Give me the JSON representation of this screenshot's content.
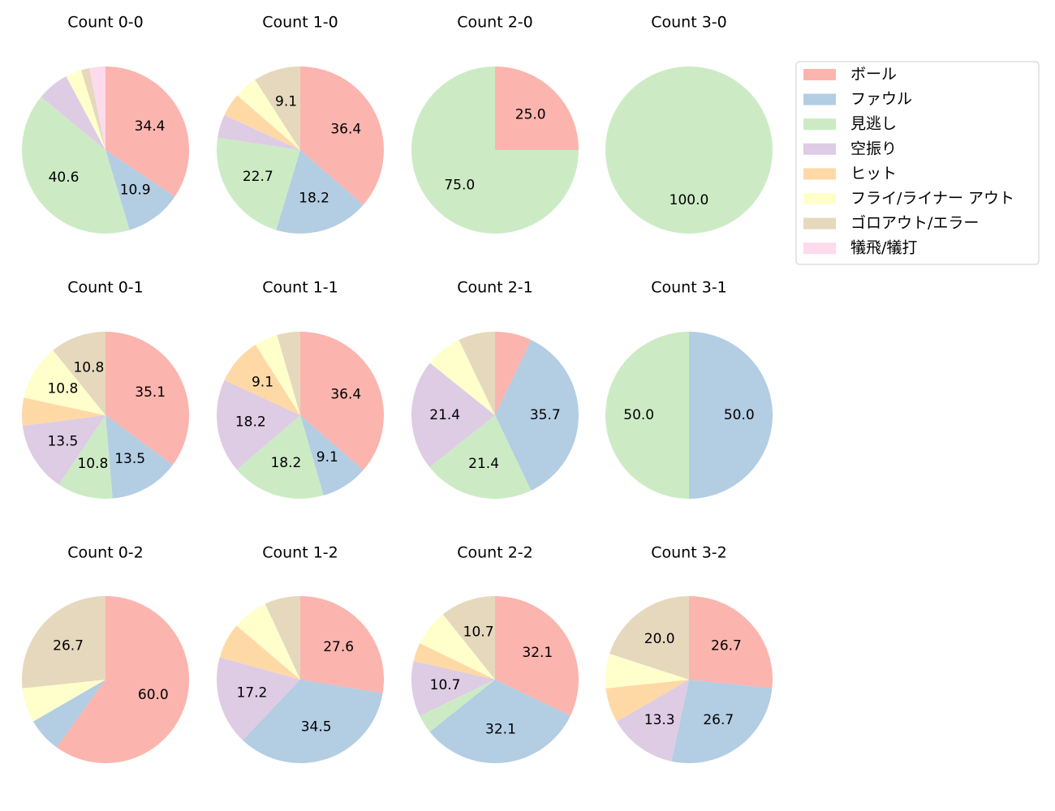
{
  "chart_data": [
    {
      "type": "pie",
      "title": "Count 0-0",
      "legend": "upper right",
      "categories": [
        "ボール",
        "ファウル",
        "見逃し",
        "空振り",
        "ヒット",
        "フライ/ライナー アウト",
        "ゴロアウト/エラー",
        "犠飛/犠打"
      ],
      "colors": [
        "#fbb4ae",
        "#b3cde3",
        "#ccebc5",
        "#decbe4",
        "#fed9a6",
        "#ffffcc",
        "#e5d8bd",
        "#fddaec"
      ],
      "values": [
        34.4,
        10.9,
        40.6,
        6.2,
        0,
        3.1,
        1.6,
        3.1
      ],
      "value_labels": [
        "34.4",
        "10.9",
        "40.6",
        null,
        null,
        null,
        null,
        null
      ]
    },
    {
      "type": "pie",
      "title": "Count 1-0",
      "values": [
        36.4,
        18.2,
        22.7,
        4.5,
        4.5,
        4.5,
        9.1,
        0
      ],
      "value_labels": [
        "36.4",
        "18.2",
        "22.7",
        null,
        null,
        null,
        "9.1",
        null
      ]
    },
    {
      "type": "pie",
      "title": "Count 2-0",
      "values": [
        25,
        0,
        75,
        0,
        0,
        0,
        0,
        0
      ],
      "value_labels": [
        "25.0",
        null,
        "75.0",
        null,
        null,
        null,
        null,
        null
      ]
    },
    {
      "type": "pie",
      "title": "Count 3-0",
      "values": [
        0,
        0,
        100,
        0,
        0,
        0,
        0,
        0
      ],
      "value_labels": [
        null,
        null,
        "100.0",
        null,
        null,
        null,
        null,
        null
      ]
    },
    {
      "type": "pie",
      "title": "Count 0-1",
      "values": [
        35.1,
        13.5,
        10.8,
        13.5,
        5.4,
        10.8,
        10.8,
        0
      ],
      "value_labels": [
        "35.1",
        "13.5",
        "10.8",
        "13.5",
        null,
        "10.8",
        "10.8",
        null
      ]
    },
    {
      "type": "pie",
      "title": "Count 1-1",
      "values": [
        36.4,
        9.1,
        18.2,
        18.2,
        9.1,
        4.5,
        4.5,
        0
      ],
      "value_labels": [
        "36.4",
        "9.1",
        "18.2",
        "18.2",
        "9.1",
        null,
        null,
        null
      ]
    },
    {
      "type": "pie",
      "title": "Count 2-1",
      "values": [
        7.1,
        35.7,
        21.4,
        21.4,
        0,
        7.1,
        7.1,
        0
      ],
      "value_labels": [
        null,
        "35.7",
        "21.4",
        "21.4",
        null,
        null,
        null,
        null
      ]
    },
    {
      "type": "pie",
      "title": "Count 3-1",
      "values": [
        0,
        50,
        50,
        0,
        0,
        0,
        0,
        0
      ],
      "value_labels": [
        null,
        "50.0",
        "50.0",
        null,
        null,
        null,
        null,
        null
      ]
    },
    {
      "type": "pie",
      "title": "Count 0-2",
      "values": [
        60,
        6.7,
        0,
        0,
        0,
        6.7,
        26.7,
        0
      ],
      "value_labels": [
        "60.0",
        null,
        null,
        null,
        null,
        null,
        "26.7",
        null
      ]
    },
    {
      "type": "pie",
      "title": "Count 1-2",
      "values": [
        27.6,
        34.5,
        0,
        17.2,
        6.9,
        6.9,
        6.9,
        0
      ],
      "value_labels": [
        "27.6",
        "34.5",
        null,
        "17.2",
        null,
        null,
        null,
        null
      ]
    },
    {
      "type": "pie",
      "title": "Count 2-2",
      "values": [
        32.1,
        32.1,
        3.6,
        10.7,
        3.6,
        7.1,
        10.7,
        0
      ],
      "value_labels": [
        "32.1",
        "32.1",
        null,
        "10.7",
        null,
        null,
        "10.7",
        null
      ]
    },
    {
      "type": "pie",
      "title": "Count 3-2",
      "values": [
        26.7,
        26.7,
        0,
        13.3,
        6.7,
        6.7,
        20.0,
        0
      ],
      "value_labels": [
        "26.7",
        "26.7",
        null,
        "13.3",
        null,
        null,
        "20.0",
        null
      ]
    }
  ]
}
